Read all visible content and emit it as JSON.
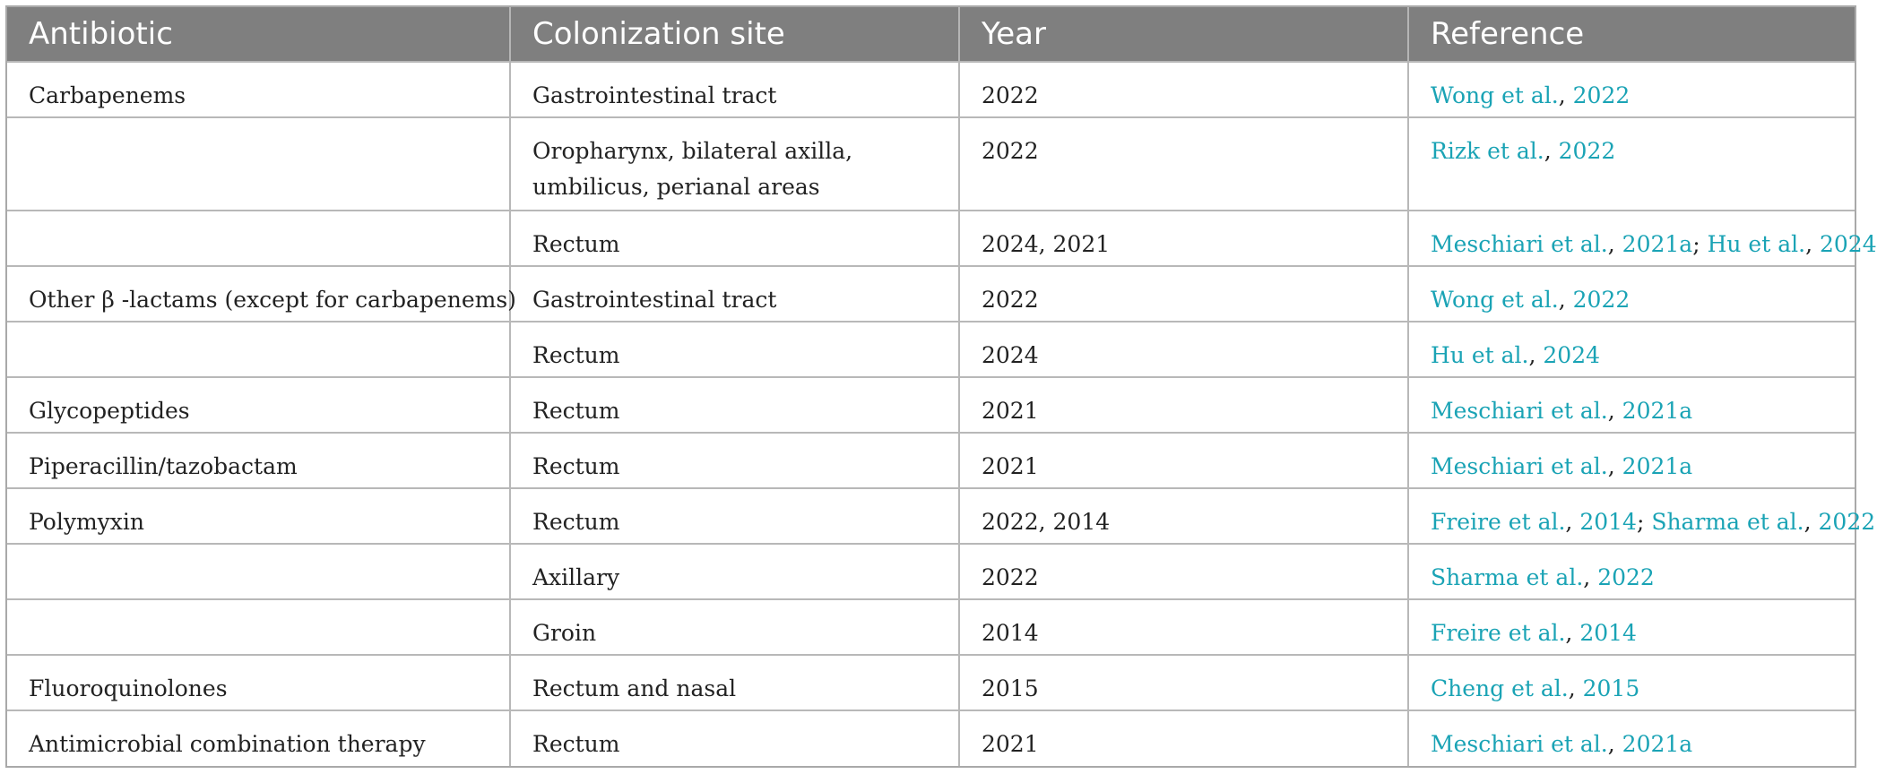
{
  "table": {
    "headers": [
      "Antibiotic",
      "Colonization site",
      "Year",
      "Reference"
    ],
    "rows": [
      {
        "antibiotic": "Carbapenems",
        "site": "Gastrointestinal tract",
        "year": "2022",
        "references": [
          {
            "author": "Wong et al.",
            "year": "2022"
          }
        ]
      },
      {
        "antibiotic": "",
        "site": "Oropharynx, bilateral axilla, umbilicus, perianal areas",
        "year": "2022",
        "references": [
          {
            "author": "Rizk et al.",
            "year": "2022"
          }
        ]
      },
      {
        "antibiotic": "",
        "site": "Rectum",
        "year": "2024, 2021",
        "references": [
          {
            "author": "Meschiari et al.",
            "year": "2021a"
          },
          {
            "author": "Hu et al.",
            "year": "2024"
          }
        ]
      },
      {
        "antibiotic": "Other β -lactams (except for carbapenems)",
        "site": "Gastrointestinal tract",
        "year": "2022",
        "references": [
          {
            "author": "Wong et al.",
            "year": "2022"
          }
        ]
      },
      {
        "antibiotic": "",
        "site": "Rectum",
        "year": "2024",
        "references": [
          {
            "author": "Hu et al.",
            "year": "2024"
          }
        ]
      },
      {
        "antibiotic": "Glycopeptides",
        "site": "Rectum",
        "year": "2021",
        "references": [
          {
            "author": "Meschiari et al.",
            "year": "2021a"
          }
        ]
      },
      {
        "antibiotic": "Piperacillin/tazobactam",
        "site": "Rectum",
        "year": "2021",
        "references": [
          {
            "author": "Meschiari et al.",
            "year": "2021a"
          }
        ]
      },
      {
        "antibiotic": "Polymyxin",
        "site": "Rectum",
        "year": "2022, 2014",
        "references": [
          {
            "author": "Freire et al.",
            "year": "2014"
          },
          {
            "author": "Sharma et al.",
            "year": "2022"
          }
        ]
      },
      {
        "antibiotic": "",
        "site": "Axillary",
        "year": "2022",
        "references": [
          {
            "author": "Sharma et al.",
            "year": "2022"
          }
        ]
      },
      {
        "antibiotic": "",
        "site": "Groin",
        "year": "2014",
        "references": [
          {
            "author": "Freire et al.",
            "year": "2014"
          }
        ]
      },
      {
        "antibiotic": "Fluoroquinolones",
        "site": "Rectum and nasal",
        "year": "2015",
        "references": [
          {
            "author": "Cheng et al.",
            "year": "2015"
          }
        ]
      },
      {
        "antibiotic": "Antimicrobial combination therapy",
        "site": "Rectum",
        "year": "2021",
        "references": [
          {
            "author": "Meschiari et al.",
            "year": "2021a"
          }
        ]
      }
    ]
  },
  "colors": {
    "header_bg": "#7f7f7f",
    "header_text": "#ffffff",
    "link": "#1aa3b5",
    "body_text": "#222222"
  }
}
